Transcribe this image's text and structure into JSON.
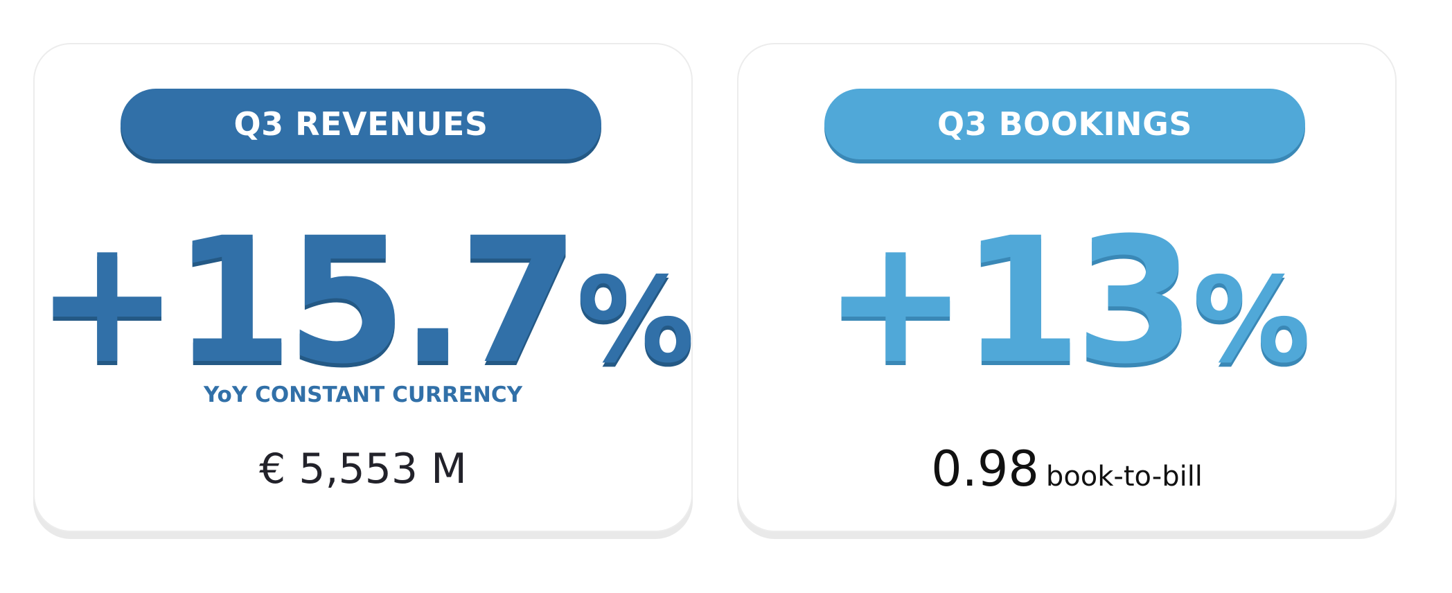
{
  "revenues": {
    "title": "Q3 REVENUES",
    "growth": "+15.7",
    "growth_unit": "%",
    "basis": "YoY CONSTANT CURRENCY",
    "amount": "€ 5,553 M"
  },
  "bookings": {
    "title": "Q3 BOOKINGS",
    "growth": "+13",
    "growth_unit": "%",
    "book_to_bill_value": "0.98",
    "book_to_bill_label": "book-to-bill"
  },
  "colors": {
    "revenues_accent": "#3170a8",
    "bookings_accent": "#50a8d8",
    "card_border": "#ececec"
  }
}
